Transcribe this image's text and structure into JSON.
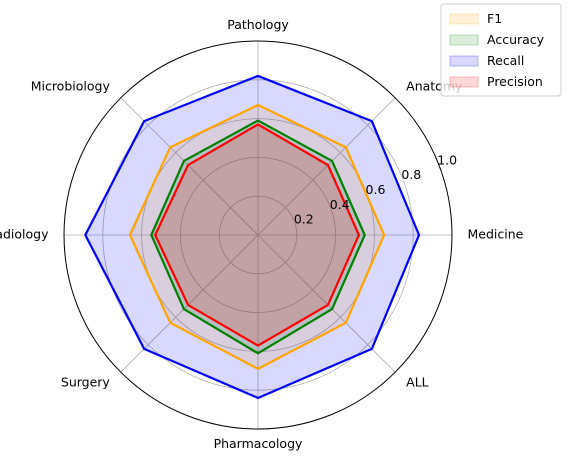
{
  "chart_data": {
    "type": "radar",
    "categories": [
      "Medicine",
      "Anatomy",
      "Pathology",
      "Microbiology",
      "Radiology",
      "Surgery",
      "Pharmacology",
      "ALL"
    ],
    "rlim": [
      0,
      1.0
    ],
    "rticks": [
      0.2,
      0.4,
      0.6,
      0.8,
      1.0
    ],
    "rtick_labels": [
      "0.2",
      "0.4",
      "0.6",
      "0.8",
      "1.0"
    ],
    "grid": true,
    "legend_position": "top-right",
    "series": [
      {
        "name": "F1",
        "color": "#ffa500",
        "fill": "#ffa500",
        "values": [
          0.65,
          0.64,
          0.67,
          0.64,
          0.66,
          0.64,
          0.69,
          0.64
        ]
      },
      {
        "name": "Accuracy",
        "color": "#008000",
        "fill": "#008000",
        "values": [
          0.55,
          0.54,
          0.59,
          0.54,
          0.55,
          0.54,
          0.61,
          0.54
        ]
      },
      {
        "name": "Recall",
        "color": "#0000ff",
        "fill": "#0000ff",
        "values": [
          0.83,
          0.83,
          0.82,
          0.83,
          0.89,
          0.83,
          0.84,
          0.83
        ]
      },
      {
        "name": "Precision",
        "color": "#ff0000",
        "fill": "#ff0000",
        "values": [
          0.52,
          0.51,
          0.57,
          0.51,
          0.53,
          0.51,
          0.57,
          0.51
        ]
      }
    ]
  }
}
